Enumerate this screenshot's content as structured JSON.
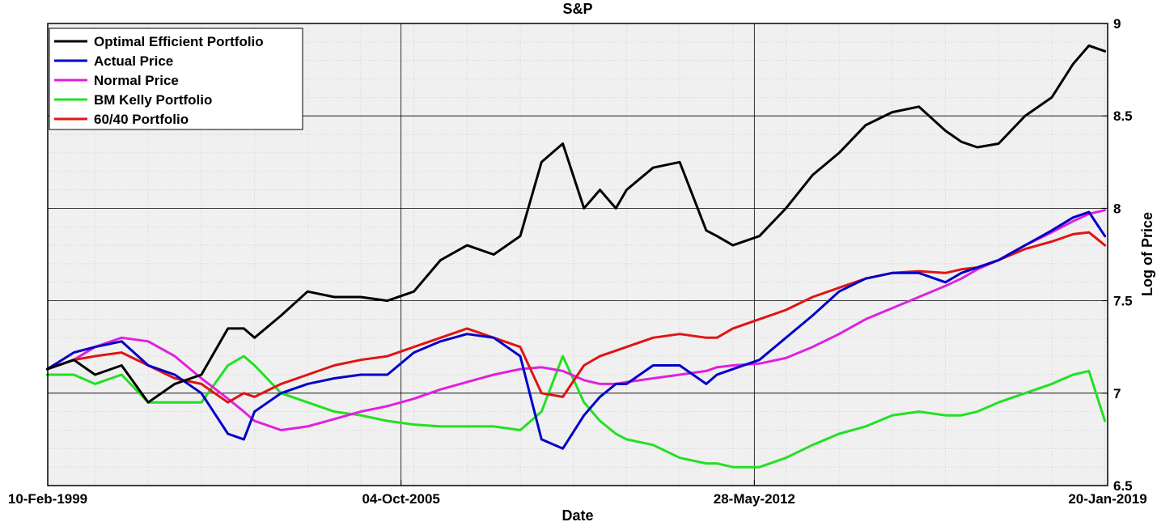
{
  "chart_data": {
    "type": "line",
    "title": "S&P",
    "xlabel": "Date",
    "ylabel": "Log of Price",
    "x_tick_labels": [
      "10-Feb-1999",
      "04-Oct-2005",
      "28-May-2012",
      "20-Jan-2019"
    ],
    "xlim": [
      "1999-02-10",
      "2019-01-20"
    ],
    "ylim": [
      6.5,
      9
    ],
    "y_ticks": [
      6.5,
      7,
      7.5,
      8,
      8.5,
      9
    ],
    "y_tick_labels": [
      "6.5",
      "7",
      "7.5",
      "8",
      "8.5",
      "9"
    ],
    "y_axis_position": "right",
    "grid": "major and minor",
    "legend_position": "top-left",
    "x": [
      1999.1,
      1999.6,
      2000.0,
      2000.5,
      2001.0,
      2001.5,
      2002.0,
      2002.5,
      2002.8,
      2003.0,
      2003.5,
      2004.0,
      2004.5,
      2005.0,
      2005.5,
      2006.0,
      2006.5,
      2007.0,
      2007.5,
      2008.0,
      2008.4,
      2008.8,
      2009.2,
      2009.5,
      2009.8,
      2010.0,
      2010.5,
      2011.0,
      2011.5,
      2011.7,
      2012.0,
      2012.5,
      2013.0,
      2013.5,
      2014.0,
      2014.5,
      2015.0,
      2015.5,
      2016.0,
      2016.3,
      2016.6,
      2017.0,
      2017.5,
      2018.0,
      2018.4,
      2018.7,
      2019.0
    ],
    "series": [
      {
        "name": "Optimal Efficient Portfolio",
        "color": "#000000",
        "values": [
          7.13,
          7.18,
          7.1,
          7.15,
          6.95,
          7.05,
          7.1,
          7.35,
          7.35,
          7.3,
          7.42,
          7.55,
          7.52,
          7.52,
          7.5,
          7.55,
          7.72,
          7.8,
          7.75,
          7.85,
          8.25,
          8.35,
          8.0,
          8.1,
          8.0,
          8.1,
          8.22,
          8.25,
          7.88,
          7.85,
          7.8,
          7.85,
          8.0,
          8.18,
          8.3,
          8.45,
          8.52,
          8.55,
          8.42,
          8.36,
          8.33,
          8.35,
          8.5,
          8.6,
          8.78,
          8.88,
          8.85
        ]
      },
      {
        "name": "Actual Price",
        "color": "#0000c8",
        "values": [
          7.13,
          7.22,
          7.25,
          7.28,
          7.15,
          7.1,
          7.0,
          6.78,
          6.75,
          6.9,
          7.0,
          7.05,
          7.08,
          7.1,
          7.1,
          7.22,
          7.28,
          7.32,
          7.3,
          7.2,
          6.75,
          6.7,
          6.88,
          6.98,
          7.05,
          7.05,
          7.15,
          7.15,
          7.05,
          7.1,
          7.13,
          7.18,
          7.3,
          7.42,
          7.55,
          7.62,
          7.65,
          7.65,
          7.6,
          7.65,
          7.68,
          7.72,
          7.8,
          7.88,
          7.95,
          7.98,
          7.85
        ]
      },
      {
        "name": "Normal Price",
        "color": "#e020e0",
        "values": [
          7.13,
          7.18,
          7.25,
          7.3,
          7.28,
          7.2,
          7.08,
          6.97,
          6.9,
          6.85,
          6.8,
          6.82,
          6.86,
          6.9,
          6.93,
          6.97,
          7.02,
          7.06,
          7.1,
          7.13,
          7.14,
          7.12,
          7.07,
          7.05,
          7.05,
          7.06,
          7.08,
          7.1,
          7.12,
          7.14,
          7.15,
          7.16,
          7.19,
          7.25,
          7.32,
          7.4,
          7.46,
          7.52,
          7.58,
          7.62,
          7.67,
          7.72,
          7.8,
          7.87,
          7.93,
          7.97,
          7.99
        ]
      },
      {
        "name": "BM Kelly Portfolio",
        "color": "#22e022",
        "values": [
          7.1,
          7.1,
          7.05,
          7.1,
          6.95,
          6.95,
          6.95,
          7.15,
          7.2,
          7.15,
          7.0,
          6.95,
          6.9,
          6.88,
          6.85,
          6.83,
          6.82,
          6.82,
          6.82,
          6.8,
          6.9,
          7.2,
          6.95,
          6.85,
          6.78,
          6.75,
          6.72,
          6.65,
          6.62,
          6.62,
          6.6,
          6.6,
          6.65,
          6.72,
          6.78,
          6.82,
          6.88,
          6.9,
          6.88,
          6.88,
          6.9,
          6.95,
          7.0,
          7.05,
          7.1,
          7.12,
          6.85
        ]
      },
      {
        "name": "60/40 Portfolio",
        "color": "#e01414",
        "values": [
          7.13,
          7.18,
          7.2,
          7.22,
          7.15,
          7.08,
          7.05,
          6.95,
          7.0,
          6.98,
          7.05,
          7.1,
          7.15,
          7.18,
          7.2,
          7.25,
          7.3,
          7.35,
          7.3,
          7.25,
          7.0,
          6.98,
          7.15,
          7.2,
          7.23,
          7.25,
          7.3,
          7.32,
          7.3,
          7.3,
          7.35,
          7.4,
          7.45,
          7.52,
          7.57,
          7.62,
          7.65,
          7.66,
          7.65,
          7.67,
          7.68,
          7.72,
          7.78,
          7.82,
          7.86,
          7.87,
          7.8
        ]
      }
    ]
  }
}
